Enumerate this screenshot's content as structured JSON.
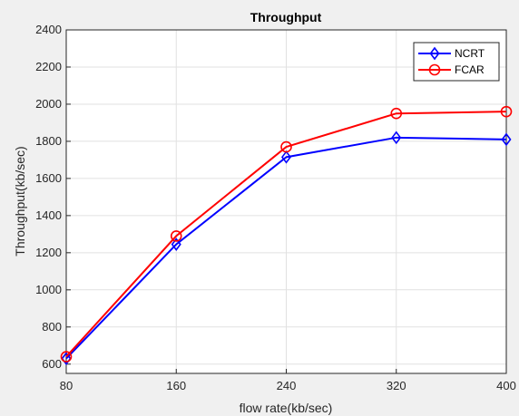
{
  "chart_data": {
    "type": "line",
    "title": "Throughput",
    "xlabel": "flow rate(kb/sec)",
    "ylabel": "Throughput(kb/sec)",
    "x": [
      80,
      160,
      240,
      320,
      400
    ],
    "xticks": [
      80,
      160,
      240,
      320,
      400
    ],
    "yticks": [
      600,
      800,
      1000,
      1200,
      1400,
      1600,
      1800,
      2000,
      2200,
      2400
    ],
    "xlim": [
      80,
      400
    ],
    "ylim": [
      550,
      2400
    ],
    "grid": true,
    "legend_position": "top-right",
    "series": [
      {
        "name": "NCRT",
        "color": "#0000ff",
        "marker": "diamond",
        "values": [
          630,
          1245,
          1715,
          1820,
          1810
        ]
      },
      {
        "name": "FCAR",
        "color": "#ff0000",
        "marker": "circle",
        "values": [
          640,
          1290,
          1770,
          1950,
          1960
        ]
      }
    ]
  }
}
